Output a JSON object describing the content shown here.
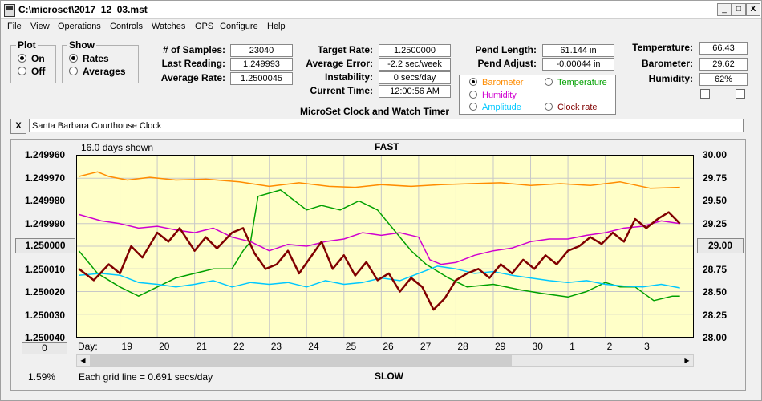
{
  "window": {
    "title": "C:\\microset\\2017_12_03.mst",
    "min_glyph": "_",
    "max_glyph": "□",
    "close_glyph": "X"
  },
  "menu": [
    "File",
    "View",
    "Operations",
    "Controls",
    "Watches",
    "GPS",
    "Configure",
    "Help"
  ],
  "plot_group": {
    "label": "Plot",
    "options": [
      "On",
      "Off"
    ],
    "selected": 0
  },
  "show_group": {
    "label": "Show",
    "options": [
      "Rates",
      "Averages"
    ],
    "selected": 0
  },
  "stats": {
    "samples_label": "# of Samples:",
    "samples": "23040",
    "last_label": "Last Reading:",
    "last": "1.249993",
    "avg_label": "Average Rate:",
    "avg": "1.2500045",
    "target_label": "Target Rate:",
    "target": "1.2500000",
    "err_label": "Average Error:",
    "err": "-2.2 sec/week",
    "inst_label": "Instability:",
    "inst": "0 secs/day",
    "time_label": "Current Time:",
    "time": "12:00:56 AM",
    "pend_len_label": "Pend Length:",
    "pend_len": "61.144 in",
    "pend_adj_label": "Pend Adjust:",
    "pend_adj": "-0.00044 in",
    "temp_label": "Temperature:",
    "temp": "66.43",
    "baro_label": "Barometer:",
    "baro": "29.62",
    "hum_label": "Humidity:",
    "hum": "62%"
  },
  "caption": "MicroSet Clock and Watch Timer",
  "sensor_select": {
    "items": [
      {
        "label": "Barometer",
        "color": "#ff8c00",
        "on": true
      },
      {
        "label": "Temperature",
        "color": "#00a000",
        "on": false
      },
      {
        "label": "Humidity",
        "color": "#d000d0",
        "on": false
      },
      {
        "label": "Amplitude",
        "color": "#00c8ff",
        "on": false
      },
      {
        "label": "Clock rate",
        "color": "#800000",
        "on": false
      }
    ]
  },
  "clear_button": "X",
  "clock_name": "Santa Barbara Courthouse Clock",
  "chart": {
    "days_shown": "16.0 days shown",
    "top_label": "FAST",
    "bottom_label": "SLOW",
    "grid_note": "Each grid line = 0.691 secs/day",
    "percent": "1.59%",
    "left_center_button": "1.250000",
    "right_center_button": "29.00",
    "zero_button": "0",
    "day_label": "Day:"
  },
  "chart_data": {
    "type": "line",
    "y_left_ticks": [
      "1.249960",
      "1.249970",
      "1.249980",
      "1.249990",
      "1.250000",
      "1.250010",
      "1.250020",
      "1.250030",
      "1.250040"
    ],
    "y_right_ticks": [
      "30.00",
      "29.75",
      "29.50",
      "29.25",
      "29.00",
      "28.75",
      "28.50",
      "28.25",
      "28.00"
    ],
    "x_days": [
      "19",
      "20",
      "21",
      "22",
      "23",
      "24",
      "25",
      "26",
      "27",
      "28",
      "29",
      "30",
      "1",
      "2",
      "3"
    ],
    "x_day_positions": [
      0,
      1,
      2,
      3,
      4,
      5,
      6,
      7,
      8,
      9,
      10,
      11,
      12,
      13,
      14
    ],
    "x_range": [
      -1.15,
      15.35
    ],
    "y_range_left": [
      1.24996,
      1.25004
    ],
    "y_range_right": [
      28.0,
      30.0
    ],
    "grid": true,
    "series": [
      {
        "name": "Barometer",
        "color": "#ff8c00",
        "axis": "right",
        "x": [
          -1.1,
          -0.6,
          -0.3,
          0.2,
          0.8,
          1.5,
          2.3,
          3.2,
          4.0,
          4.8,
          5.6,
          6.3,
          7.0,
          7.8,
          8.6,
          9.4,
          10.2,
          11.0,
          11.8,
          12.6,
          13.4,
          14.2,
          15.0
        ],
        "y": [
          29.77,
          29.82,
          29.77,
          29.73,
          29.76,
          29.73,
          29.74,
          29.71,
          29.66,
          29.7,
          29.66,
          29.65,
          29.68,
          29.66,
          29.68,
          29.69,
          29.7,
          29.67,
          29.69,
          29.67,
          29.71,
          29.64,
          29.65
        ]
      },
      {
        "name": "Temperature",
        "color": "#00a000",
        "axis": "right",
        "x": [
          -1.1,
          -0.6,
          0.0,
          0.5,
          1.0,
          1.5,
          2.0,
          2.5,
          3.0,
          3.3,
          3.5,
          3.7,
          4.3,
          5.0,
          5.4,
          5.9,
          6.4,
          6.9,
          7.3,
          7.8,
          8.2,
          8.8,
          9.3,
          10.0,
          10.7,
          11.3,
          12.0,
          12.5,
          13.0,
          13.4,
          13.8,
          14.3,
          14.8,
          15.0
        ],
        "y": [
          28.95,
          28.7,
          28.55,
          28.45,
          28.55,
          28.65,
          28.7,
          28.75,
          28.75,
          28.95,
          29.05,
          29.55,
          29.62,
          29.4,
          29.45,
          29.4,
          29.5,
          29.4,
          29.2,
          28.95,
          28.8,
          28.65,
          28.55,
          28.58,
          28.52,
          28.48,
          28.44,
          28.5,
          28.6,
          28.55,
          28.55,
          28.4,
          28.45,
          28.45
        ]
      },
      {
        "name": "Humidity",
        "color": "#d000d0",
        "axis": "right",
        "x": [
          -1.1,
          -0.5,
          0.0,
          0.5,
          1.0,
          1.5,
          2.0,
          2.5,
          3.0,
          3.5,
          4.0,
          4.5,
          5.0,
          5.5,
          6.0,
          6.5,
          7.0,
          7.5,
          8.0,
          8.3,
          8.6,
          9.0,
          9.5,
          10.0,
          10.5,
          11.0,
          11.5,
          12.0,
          12.5,
          13.0,
          13.5,
          14.0,
          14.5,
          15.0
        ],
        "y": [
          29.35,
          29.28,
          29.25,
          29.2,
          29.22,
          29.18,
          29.15,
          29.2,
          29.1,
          29.05,
          28.95,
          29.02,
          29.0,
          29.05,
          29.08,
          29.15,
          29.12,
          29.15,
          29.1,
          28.85,
          28.8,
          28.82,
          28.9,
          28.95,
          28.98,
          29.05,
          29.08,
          29.08,
          29.12,
          29.15,
          29.2,
          29.22,
          29.28,
          29.25
        ]
      },
      {
        "name": "Amplitude",
        "color": "#00c8ff",
        "axis": "right",
        "x": [
          -1.1,
          -0.5,
          0.0,
          0.5,
          1.0,
          1.5,
          2.0,
          2.5,
          3.0,
          3.5,
          4.0,
          4.5,
          5.0,
          5.5,
          6.0,
          6.5,
          7.0,
          7.5,
          8.0,
          8.5,
          9.0,
          9.5,
          10.0,
          10.5,
          11.0,
          11.5,
          12.0,
          12.5,
          13.0,
          13.5,
          14.0,
          14.5,
          15.0
        ],
        "y": [
          28.68,
          28.7,
          28.68,
          28.6,
          28.58,
          28.55,
          28.58,
          28.62,
          28.55,
          28.6,
          28.58,
          28.6,
          28.55,
          28.62,
          28.58,
          28.6,
          28.65,
          28.62,
          28.7,
          28.78,
          28.75,
          28.7,
          28.72,
          28.68,
          28.65,
          28.62,
          28.6,
          28.62,
          28.58,
          28.56,
          28.55,
          28.58,
          28.54
        ]
      },
      {
        "name": "Clock rate",
        "color": "#800000",
        "axis": "left",
        "x": [
          -1.1,
          -0.7,
          -0.3,
          0.0,
          0.3,
          0.6,
          1.0,
          1.3,
          1.6,
          2.0,
          2.3,
          2.6,
          3.0,
          3.3,
          3.6,
          3.9,
          4.2,
          4.5,
          4.8,
          5.1,
          5.4,
          5.7,
          6.0,
          6.3,
          6.6,
          6.9,
          7.2,
          7.5,
          7.8,
          8.1,
          8.4,
          8.7,
          9.0,
          9.3,
          9.6,
          9.9,
          10.2,
          10.5,
          10.8,
          11.1,
          11.4,
          11.7,
          12.0,
          12.3,
          12.6,
          12.9,
          13.2,
          13.5,
          13.8,
          14.1,
          14.4,
          14.7,
          15.0
        ],
        "y": [
          1.25001,
          1.250015,
          1.250008,
          1.250012,
          1.25,
          1.250005,
          1.249994,
          1.249998,
          1.249992,
          1.250002,
          1.249996,
          1.250001,
          1.249994,
          1.249992,
          1.250003,
          1.25001,
          1.250008,
          1.250002,
          1.250012,
          1.250005,
          1.249998,
          1.25001,
          1.250004,
          1.250013,
          1.250007,
          1.250015,
          1.250012,
          1.25002,
          1.250014,
          1.250018,
          1.250028,
          1.250023,
          1.250015,
          1.250012,
          1.25001,
          1.250014,
          1.250008,
          1.250012,
          1.250006,
          1.25001,
          1.250004,
          1.250008,
          1.250002,
          1.25,
          1.249996,
          1.249999,
          1.249994,
          1.249998,
          1.249988,
          1.249992,
          1.249988,
          1.249985,
          1.24999
        ]
      }
    ]
  }
}
